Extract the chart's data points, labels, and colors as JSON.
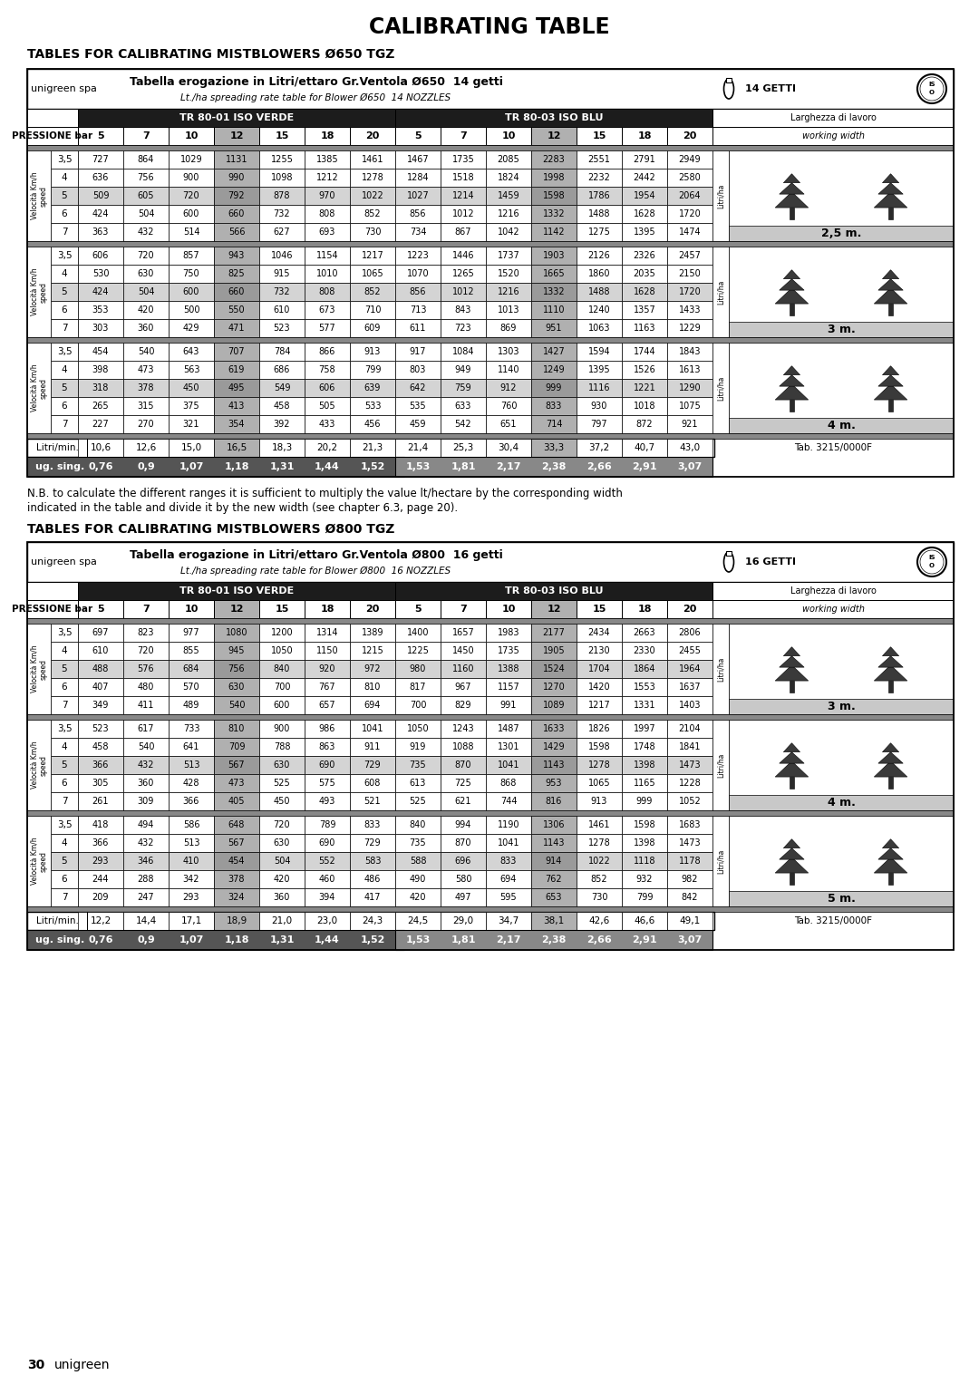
{
  "title": "CALIBRATING TABLE",
  "section1_title": "TABLES FOR CALIBRATING MISTBLOWERS Ø650 TGZ",
  "section2_title": "TABLES FOR CALIBRATING MISTBLOWERS Ø800 TGZ",
  "table1_header_main": "Tabella erogazione in Litri/ettaro Gr.Ventola Ø650  14 getti",
  "table1_header_sub": "Lt./ha spreading rate table for Blower Ø650  14 NOZZLES",
  "table1_getti": "14 GETTI",
  "table2_header_main": "Tabella erogazione in Litri/ettaro Gr.Ventola Ø800  16 getti",
  "table2_header_sub": "Lt./ha spreading rate table for Blower Ø800  16 NOZZLES",
  "table2_getti": "16 GETTI",
  "col_label_verde": "TR 80-01 ISO VERDE",
  "col_label_blu": "TR 80-03 ISO BLU",
  "pressione_label": "PRESSIONE bar",
  "pressioni": [
    5,
    7,
    10,
    12,
    15,
    18,
    20,
    5,
    7,
    10,
    12,
    15,
    18,
    20
  ],
  "larghezza_label": "Larghezza di lavoro",
  "working_width_label": "working width",
  "litri_ha_label": "Litri/ha",
  "table1_data": {
    "widths": [
      "2,5 m.",
      "3 m.",
      "4 m."
    ],
    "sections": [
      {
        "speeds": [
          3.5,
          4,
          5,
          6,
          7
        ],
        "verde": [
          [
            727,
            864,
            1029,
            1131,
            1255,
            1385,
            1461
          ],
          [
            636,
            756,
            900,
            990,
            1098,
            1212,
            1278
          ],
          [
            509,
            605,
            720,
            792,
            878,
            970,
            1022
          ],
          [
            424,
            504,
            600,
            660,
            732,
            808,
            852
          ],
          [
            363,
            432,
            514,
            566,
            627,
            693,
            730
          ]
        ],
        "blu": [
          [
            1467,
            1735,
            2085,
            2283,
            2551,
            2791,
            2949
          ],
          [
            1284,
            1518,
            1824,
            1998,
            2232,
            2442,
            2580
          ],
          [
            1027,
            1214,
            1459,
            1598,
            1786,
            1954,
            2064
          ],
          [
            856,
            1012,
            1216,
            1332,
            1488,
            1628,
            1720
          ],
          [
            734,
            867,
            1042,
            1142,
            1275,
            1395,
            1474
          ]
        ]
      },
      {
        "speeds": [
          3.5,
          4,
          5,
          6,
          7
        ],
        "verde": [
          [
            606,
            720,
            857,
            943,
            1046,
            1154,
            1217
          ],
          [
            530,
            630,
            750,
            825,
            915,
            1010,
            1065
          ],
          [
            424,
            504,
            600,
            660,
            732,
            808,
            852
          ],
          [
            353,
            420,
            500,
            550,
            610,
            673,
            710
          ],
          [
            303,
            360,
            429,
            471,
            523,
            577,
            609
          ]
        ],
        "blu": [
          [
            1223,
            1446,
            1737,
            1903,
            2126,
            2326,
            2457
          ],
          [
            1070,
            1265,
            1520,
            1665,
            1860,
            2035,
            2150
          ],
          [
            856,
            1012,
            1216,
            1332,
            1488,
            1628,
            1720
          ],
          [
            713,
            843,
            1013,
            1110,
            1240,
            1357,
            1433
          ],
          [
            611,
            723,
            869,
            951,
            1063,
            1163,
            1229
          ]
        ]
      },
      {
        "speeds": [
          3.5,
          4,
          5,
          6,
          7
        ],
        "verde": [
          [
            454,
            540,
            643,
            707,
            784,
            866,
            913
          ],
          [
            398,
            473,
            563,
            619,
            686,
            758,
            799
          ],
          [
            318,
            378,
            450,
            495,
            549,
            606,
            639
          ],
          [
            265,
            315,
            375,
            413,
            458,
            505,
            533
          ],
          [
            227,
            270,
            321,
            354,
            392,
            433,
            456
          ]
        ],
        "blu": [
          [
            917,
            1084,
            1303,
            1427,
            1594,
            1744,
            1843
          ],
          [
            803,
            949,
            1140,
            1249,
            1395,
            1526,
            1613
          ],
          [
            642,
            759,
            912,
            999,
            1116,
            1221,
            1290
          ],
          [
            535,
            633,
            760,
            833,
            930,
            1018,
            1075
          ],
          [
            459,
            542,
            651,
            714,
            797,
            872,
            921
          ]
        ]
      }
    ],
    "litri_min": [
      10.6,
      12.6,
      15.0,
      16.5,
      18.3,
      20.2,
      21.3,
      21.4,
      25.3,
      30.4,
      33.3,
      37.2,
      40.7,
      43.0
    ],
    "ug_sing": [
      0.76,
      0.9,
      1.07,
      1.18,
      1.31,
      1.44,
      1.52,
      1.53,
      1.81,
      2.17,
      2.38,
      2.66,
      2.91,
      3.07
    ],
    "tab_ref": "Tab. 3215/0000F"
  },
  "table2_data": {
    "widths": [
      "3 m.",
      "4 m.",
      "5 m."
    ],
    "sections": [
      {
        "speeds": [
          3.5,
          4,
          5,
          6,
          7
        ],
        "verde": [
          [
            697,
            823,
            977,
            1080,
            1200,
            1314,
            1389
          ],
          [
            610,
            720,
            855,
            945,
            1050,
            1150,
            1215
          ],
          [
            488,
            576,
            684,
            756,
            840,
            920,
            972
          ],
          [
            407,
            480,
            570,
            630,
            700,
            767,
            810
          ],
          [
            349,
            411,
            489,
            540,
            600,
            657,
            694
          ]
        ],
        "blu": [
          [
            1400,
            1657,
            1983,
            2177,
            2434,
            2663,
            2806
          ],
          [
            1225,
            1450,
            1735,
            1905,
            2130,
            2330,
            2455
          ],
          [
            980,
            1160,
            1388,
            1524,
            1704,
            1864,
            1964
          ],
          [
            817,
            967,
            1157,
            1270,
            1420,
            1553,
            1637
          ],
          [
            700,
            829,
            991,
            1089,
            1217,
            1331,
            1403
          ]
        ]
      },
      {
        "speeds": [
          3.5,
          4,
          5,
          6,
          7
        ],
        "verde": [
          [
            523,
            617,
            733,
            810,
            900,
            986,
            1041
          ],
          [
            458,
            540,
            641,
            709,
            788,
            863,
            911
          ],
          [
            366,
            432,
            513,
            567,
            630,
            690,
            729
          ],
          [
            305,
            360,
            428,
            473,
            525,
            575,
            608
          ],
          [
            261,
            309,
            366,
            405,
            450,
            493,
            521
          ]
        ],
        "blu": [
          [
            1050,
            1243,
            1487,
            1633,
            1826,
            1997,
            2104
          ],
          [
            919,
            1088,
            1301,
            1429,
            1598,
            1748,
            1841
          ],
          [
            735,
            870,
            1041,
            1143,
            1278,
            1398,
            1473
          ],
          [
            613,
            725,
            868,
            953,
            1065,
            1165,
            1228
          ],
          [
            525,
            621,
            744,
            816,
            913,
            999,
            1052
          ]
        ]
      },
      {
        "speeds": [
          3.5,
          4,
          5,
          6,
          7
        ],
        "verde": [
          [
            418,
            494,
            586,
            648,
            720,
            789,
            833
          ],
          [
            366,
            432,
            513,
            567,
            630,
            690,
            729
          ],
          [
            293,
            346,
            410,
            454,
            504,
            552,
            583
          ],
          [
            244,
            288,
            342,
            378,
            420,
            460,
            486
          ],
          [
            209,
            247,
            293,
            324,
            360,
            394,
            417
          ]
        ],
        "blu": [
          [
            840,
            994,
            1190,
            1306,
            1461,
            1598,
            1683
          ],
          [
            735,
            870,
            1041,
            1143,
            1278,
            1398,
            1473
          ],
          [
            588,
            696,
            833,
            914,
            1022,
            1118,
            1178
          ],
          [
            490,
            580,
            694,
            762,
            852,
            932,
            982
          ],
          [
            420,
            497,
            595,
            653,
            730,
            799,
            842
          ]
        ]
      }
    ],
    "litri_min": [
      12.2,
      14.4,
      17.1,
      18.9,
      21.0,
      23.0,
      24.3,
      24.5,
      29.0,
      34.7,
      38.1,
      42.6,
      46.6,
      49.1
    ],
    "ug_sing": [
      0.76,
      0.9,
      1.07,
      1.18,
      1.31,
      1.44,
      1.52,
      1.53,
      1.81,
      2.17,
      2.38,
      2.66,
      2.91,
      3.07
    ],
    "tab_ref": "Tab. 3215/0000F"
  },
  "nb_text1": "N.B. to calculate the different ranges it is sufficient to multiply the value lt/hectare by the corresponding width",
  "nb_text2": "indicated in the table and divide it by the new width (see chapter 6.3, page 20).",
  "page_label": "30",
  "page_label2": "unigreen"
}
